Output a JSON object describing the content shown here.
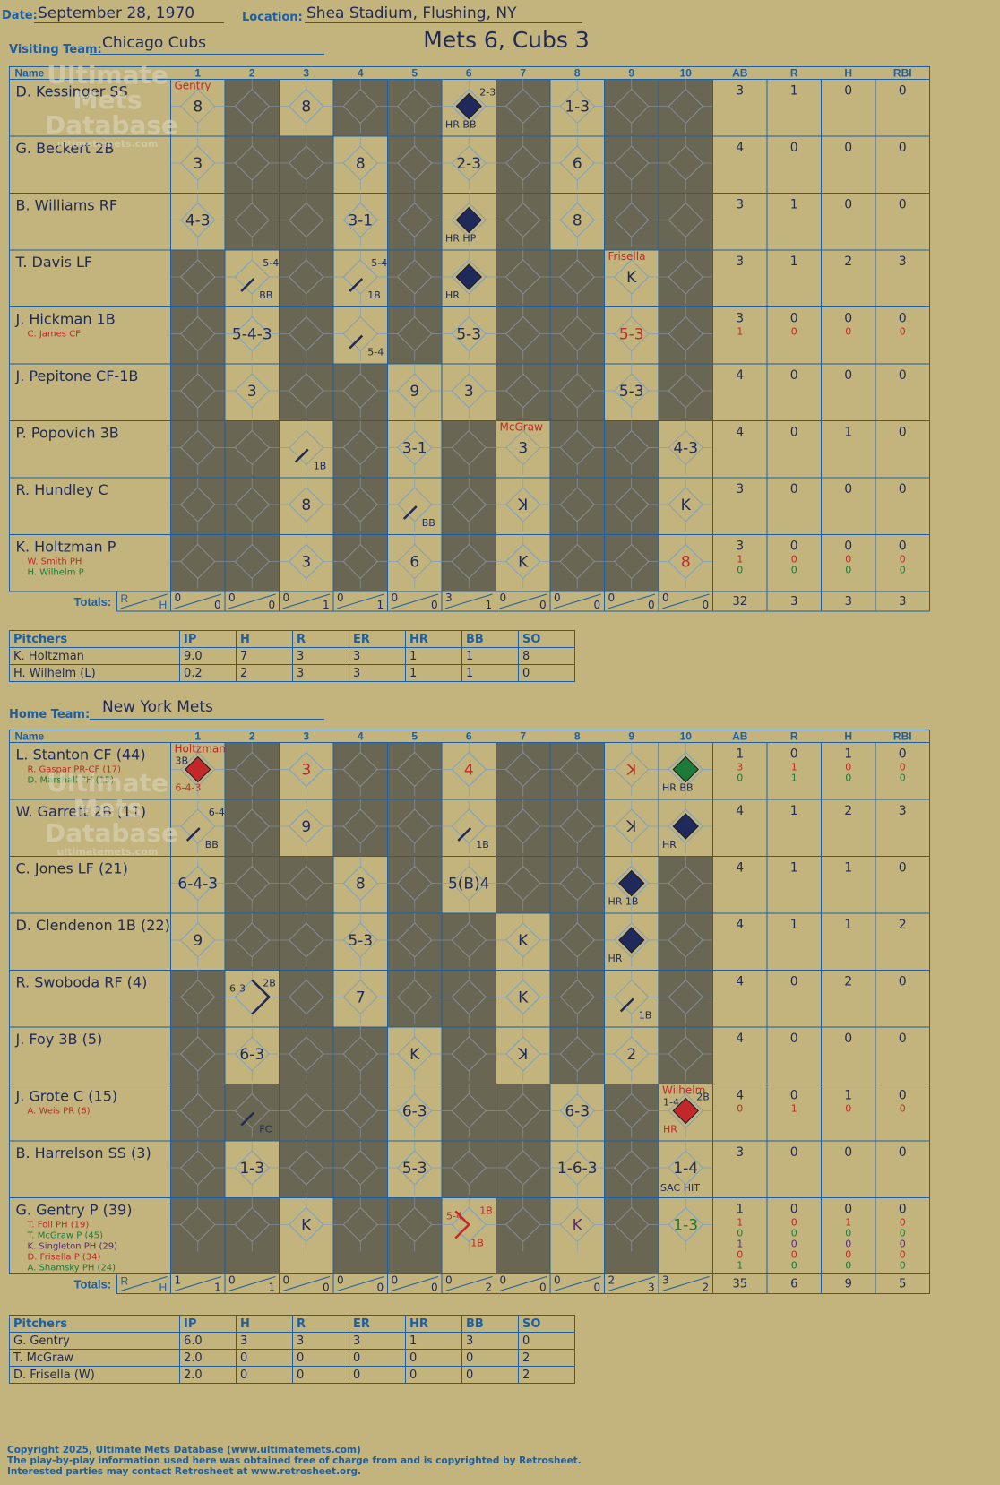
{
  "header": {
    "date_label": "Date:",
    "date": "September 28, 1970",
    "location_label": "Location:",
    "location": "Shea Stadium, Flushing, NY",
    "visiting_label": "Visiting Team:",
    "visiting_team": "Chicago Cubs",
    "home_label": "Home Team:",
    "home_team": "New York Mets",
    "matchup": "Mets 6, Cubs 3"
  },
  "watermark": {
    "line1": "Ultimate",
    "line2": "Mets",
    "line3": "Database",
    "url": "ultimatemets.com"
  },
  "colors": {
    "background": "#c2b47c",
    "grid": "#1d5fa5",
    "shade": "#6a6654",
    "ink": "#1f2a5a",
    "red": "#c22828",
    "green": "#1e7a3a",
    "purple": "#5a2a7a"
  },
  "columns": {
    "name": "Name",
    "innings": [
      "1",
      "2",
      "3",
      "4",
      "5",
      "6",
      "7",
      "8",
      "9",
      "10"
    ],
    "stats": [
      "AB",
      "R",
      "H",
      "RBI"
    ]
  },
  "totals_label": "Totals:",
  "totals_r": "R",
  "totals_h": "H",
  "pitch_headers": [
    "Pitchers",
    "IP",
    "H",
    "R",
    "ER",
    "HR",
    "BB",
    "SO"
  ],
  "visitors": {
    "rows": [
      {
        "name": "D. Kessinger SS",
        "subs": [],
        "stats": [
          [
            "3",
            "1",
            "0",
            "0"
          ]
        ],
        "cells": [
          {
            "c": "8",
            "pitch": "Gentry",
            "pc": "red"
          },
          null,
          {
            "c": "8"
          },
          null,
          null,
          {
            "c": "",
            "dia": "ink",
            "br": "HR  BB",
            "tr": "2-3"
          },
          null,
          {
            "c": "1-3"
          },
          null,
          null
        ]
      },
      {
        "name": "G. Beckert 2B",
        "subs": [],
        "stats": [
          [
            "4",
            "0",
            "0",
            "0"
          ]
        ],
        "cells": [
          {
            "c": "3"
          },
          null,
          null,
          {
            "c": "8"
          },
          null,
          {
            "c": "2-3"
          },
          null,
          {
            "c": "6"
          },
          null,
          null
        ]
      },
      {
        "name": "B. Williams RF",
        "subs": [],
        "stats": [
          [
            "3",
            "1",
            "0",
            "0"
          ]
        ],
        "cells": [
          {
            "c": "4-3"
          },
          null,
          null,
          {
            "c": "3-1"
          },
          null,
          {
            "c": "",
            "dia": "ink",
            "br": "HR  HP"
          },
          null,
          {
            "c": "8"
          },
          null,
          null
        ]
      },
      {
        "name": "T. Davis LF",
        "subs": [],
        "stats": [
          [
            "3",
            "1",
            "2",
            "3"
          ]
        ],
        "cells": [
          null,
          {
            "c": "",
            "tr": "5-4",
            "slash": true,
            "brr": "BB"
          },
          null,
          {
            "c": "",
            "tr": "5-4",
            "slash": true,
            "brr": "1B"
          },
          null,
          {
            "c": "",
            "dia": "ink",
            "br": "HR"
          },
          null,
          null,
          {
            "c": "K",
            "pitch": "Frisella",
            "pc": "red"
          },
          null
        ]
      },
      {
        "name": "J. Hickman 1B",
        "subs": [
          {
            "t": "C. James CF",
            "col": "red"
          }
        ],
        "stats": [
          [
            "3",
            "0",
            "0",
            "0"
          ],
          [
            "1",
            "0",
            "0",
            "0"
          ]
        ],
        "cells": [
          null,
          {
            "c": "5-4-3"
          },
          null,
          {
            "c": "",
            "slash": true,
            "brr": "5-4"
          },
          null,
          {
            "c": "5-3"
          },
          null,
          null,
          {
            "c": "5-3",
            "col": "red"
          },
          null
        ]
      },
      {
        "name": "J. Pepitone CF-1B",
        "subs": [],
        "stats": [
          [
            "4",
            "0",
            "0",
            "0"
          ]
        ],
        "cells": [
          null,
          {
            "c": "3"
          },
          null,
          null,
          {
            "c": "9"
          },
          {
            "c": "3"
          },
          null,
          null,
          {
            "c": "5-3"
          },
          null
        ]
      },
      {
        "name": "P. Popovich 3B",
        "subs": [],
        "stats": [
          [
            "4",
            "0",
            "1",
            "0"
          ]
        ],
        "cells": [
          null,
          null,
          {
            "c": "",
            "slash": true,
            "brr": "1B"
          },
          null,
          {
            "c": "3-1"
          },
          null,
          {
            "c": "3",
            "pitch": "McGraw",
            "pc": "red"
          },
          null,
          null,
          {
            "c": "4-3"
          }
        ]
      },
      {
        "name": "R. Hundley C",
        "subs": [],
        "stats": [
          [
            "3",
            "0",
            "0",
            "0"
          ]
        ],
        "cells": [
          null,
          null,
          {
            "c": "8"
          },
          null,
          {
            "c": "",
            "slash": true,
            "brr": "BB"
          },
          null,
          {
            "c": "ꓘ"
          },
          null,
          null,
          {
            "c": "K"
          }
        ]
      },
      {
        "name": "K. Holtzman P",
        "subs": [
          {
            "t": "W. Smith PH",
            "col": "red"
          },
          {
            "t": "H. Wilhelm P",
            "col": "green"
          }
        ],
        "stats": [
          [
            "3",
            "0",
            "0",
            "0"
          ],
          [
            "1",
            "0",
            "0",
            "0"
          ],
          [
            "0",
            "0",
            "0",
            "0"
          ]
        ],
        "cells": [
          null,
          null,
          {
            "c": "3"
          },
          null,
          {
            "c": "6"
          },
          null,
          {
            "c": "K"
          },
          null,
          null,
          {
            "c": "8",
            "col": "red"
          }
        ]
      }
    ],
    "shade": [
      [
        0,
        0,
        1,
        0,
        1,
        1,
        0,
        1,
        0,
        1,
        1
      ],
      [
        0,
        0,
        1,
        1,
        0,
        1,
        0,
        1,
        0,
        1,
        1
      ],
      [
        0,
        0,
        1,
        1,
        0,
        1,
        0,
        1,
        0,
        1,
        1
      ],
      [
        0,
        1,
        0,
        1,
        0,
        1,
        0,
        1,
        1,
        0,
        1
      ],
      [
        0,
        1,
        0,
        1,
        0,
        1,
        0,
        1,
        1,
        0,
        1
      ],
      [
        0,
        1,
        0,
        1,
        1,
        0,
        0,
        1,
        1,
        0,
        1
      ],
      [
        0,
        1,
        1,
        0,
        1,
        0,
        1,
        0,
        1,
        1,
        0
      ],
      [
        0,
        1,
        1,
        0,
        1,
        0,
        1,
        0,
        1,
        1,
        0
      ],
      [
        0,
        1,
        1,
        0,
        1,
        0,
        1,
        0,
        1,
        1,
        0
      ]
    ],
    "totals": [
      [
        "0",
        "0"
      ],
      [
        "0",
        "0"
      ],
      [
        "0",
        "1"
      ],
      [
        "0",
        "1"
      ],
      [
        "0",
        "0"
      ],
      [
        "3",
        "1"
      ],
      [
        "0",
        "0"
      ],
      [
        "0",
        "0"
      ],
      [
        "0",
        "0"
      ],
      [
        "0",
        "0"
      ]
    ],
    "total_stats": [
      "32",
      "3",
      "3",
      "3"
    ],
    "pitchers": [
      [
        "K. Holtzman",
        "9.0",
        "7",
        "3",
        "3",
        "1",
        "1",
        "8"
      ],
      [
        "H. Wilhelm (L)",
        "0.2",
        "2",
        "3",
        "3",
        "1",
        "1",
        "0"
      ]
    ]
  },
  "home": {
    "rows": [
      {
        "name": "L. Stanton CF (44)",
        "subs": [
          {
            "t": "R. Gaspar PR-CF (17)",
            "col": "red"
          },
          {
            "t": "D. Marshall PH (15)",
            "col": "green"
          }
        ],
        "stats": [
          [
            "1",
            "0",
            "1",
            "0"
          ],
          [
            "3",
            "1",
            "0",
            "0"
          ],
          [
            "0",
            "1",
            "0",
            "0"
          ]
        ],
        "cells": [
          {
            "c": "",
            "dia": "red",
            "tl": "3B",
            "bl": "6-4-3",
            "pitch": "Holtzman",
            "pc": "red"
          },
          null,
          {
            "c": "3",
            "col": "red"
          },
          null,
          null,
          {
            "c": "4",
            "col": "red"
          },
          null,
          null,
          {
            "c": "ꓘ",
            "col": "red"
          },
          {
            "c": "",
            "dia": "green",
            "br": "HR  BB"
          }
        ]
      },
      {
        "name": "W. Garrett 2B (11)",
        "subs": [],
        "stats": [
          [
            "4",
            "1",
            "2",
            "3"
          ]
        ],
        "cells": [
          {
            "c": "",
            "tr": "6-4",
            "slash": true,
            "brr": "BB"
          },
          null,
          {
            "c": "9"
          },
          null,
          null,
          {
            "c": "",
            "slash": true,
            "brr": "1B"
          },
          null,
          null,
          {
            "c": "ꓘ"
          },
          {
            "c": "",
            "dia": "ink",
            "br": "HR"
          }
        ]
      },
      {
        "name": "C. Jones LF (21)",
        "subs": [],
        "stats": [
          [
            "4",
            "1",
            "1",
            "0"
          ]
        ],
        "cells": [
          {
            "c": "6-4-3"
          },
          null,
          null,
          {
            "c": "8"
          },
          null,
          {
            "c": "5(B)4"
          },
          null,
          null,
          {
            "c": "",
            "dia": "ink",
            "br": "HR  1B"
          },
          null
        ]
      },
      {
        "name": "D. Clendenon 1B (22)",
        "subs": [],
        "stats": [
          [
            "4",
            "1",
            "1",
            "2"
          ]
        ],
        "cells": [
          {
            "c": "9"
          },
          null,
          null,
          {
            "c": "5-3"
          },
          null,
          null,
          {
            "c": "K"
          },
          null,
          {
            "c": "",
            "dia": "ink",
            "br": "HR"
          },
          null
        ]
      },
      {
        "name": "R. Swoboda RF (4)",
        "subs": [],
        "stats": [
          [
            "4",
            "0",
            "2",
            "0"
          ]
        ],
        "cells": [
          null,
          {
            "c": "",
            "tl": "6-3",
            "tr": "2B",
            "bigslash": true
          },
          null,
          {
            "c": "7"
          },
          null,
          null,
          {
            "c": "K"
          },
          null,
          {
            "c": "",
            "slash": true,
            "brr": "1B"
          },
          null
        ]
      },
      {
        "name": "J. Foy 3B (5)",
        "subs": [],
        "stats": [
          [
            "4",
            "0",
            "0",
            "0"
          ]
        ],
        "cells": [
          null,
          {
            "c": "6-3"
          },
          null,
          null,
          {
            "c": "K"
          },
          null,
          {
            "c": "ꓘ"
          },
          null,
          {
            "c": "2"
          },
          null
        ]
      },
      {
        "name": "J. Grote C (15)",
        "subs": [
          {
            "t": "A. Weis PR (6)",
            "col": "red"
          }
        ],
        "stats": [
          [
            "4",
            "0",
            "1",
            "0"
          ],
          [
            "0",
            "1",
            "0",
            "0"
          ]
        ],
        "cells": [
          null,
          {
            "c": "",
            "slash": true,
            "brr": "FC"
          },
          null,
          null,
          {
            "c": "6-3"
          },
          null,
          null,
          {
            "c": "6-3"
          },
          null,
          {
            "c": "",
            "dia": "red",
            "tl": "1-4",
            "tr": "2B",
            "bl": "HR",
            "pitch": "Wilhelm",
            "pc": "red"
          }
        ]
      },
      {
        "name": "B. Harrelson SS (3)",
        "subs": [],
        "stats": [
          [
            "3",
            "0",
            "0",
            "0"
          ]
        ],
        "cells": [
          null,
          {
            "c": "1-3"
          },
          null,
          null,
          {
            "c": "5-3"
          },
          null,
          null,
          {
            "c": "1-6-3"
          },
          null,
          {
            "c": "1-4",
            "brl": "SAC HIT"
          }
        ]
      },
      {
        "name": "G. Gentry P (39)",
        "subs": [
          {
            "t": "T. Foli PH (19)",
            "col": "red"
          },
          {
            "t": "T. McGraw P (45)",
            "col": "green"
          },
          {
            "t": "K. Singleton PH (29)",
            "col": "purple"
          },
          {
            "t": "D. Frisella P (34)",
            "col": "red"
          },
          {
            "t": "A. Shamsky PH (24)",
            "col": "green"
          }
        ],
        "stats": [
          [
            "1",
            "0",
            "0",
            "0"
          ],
          [
            "1",
            "0",
            "1",
            "0"
          ],
          [
            "0",
            "0",
            "0",
            "0"
          ],
          [
            "1",
            "0",
            "0",
            "0"
          ],
          [
            "0",
            "0",
            "0",
            "0"
          ],
          [
            "1",
            "0",
            "0",
            "0"
          ]
        ],
        "cells": [
          null,
          null,
          {
            "c": "K"
          },
          null,
          null,
          {
            "c": "",
            "tl": "5-4",
            "tr": "1B",
            "bl": "",
            "br": "1B",
            "redbent": true
          },
          null,
          {
            "c": "K",
            "col": "purple"
          },
          null,
          {
            "c": "1-3",
            "col": "green"
          }
        ]
      }
    ],
    "shade": [
      [
        0,
        0,
        1,
        0,
        1,
        1,
        0,
        1,
        1,
        0,
        0
      ],
      [
        0,
        0,
        1,
        0,
        1,
        1,
        0,
        1,
        1,
        0,
        0
      ],
      [
        0,
        0,
        1,
        1,
        0,
        1,
        0,
        1,
        1,
        0,
        1
      ],
      [
        0,
        0,
        1,
        1,
        0,
        1,
        1,
        0,
        1,
        0,
        1
      ],
      [
        0,
        1,
        0,
        1,
        0,
        1,
        1,
        0,
        1,
        0,
        1
      ],
      [
        0,
        1,
        0,
        1,
        1,
        0,
        1,
        0,
        1,
        0,
        1
      ],
      [
        0,
        1,
        1,
        1,
        1,
        0,
        1,
        1,
        0,
        1,
        0
      ],
      [
        0,
        1,
        0,
        1,
        1,
        0,
        1,
        1,
        0,
        1,
        0
      ],
      [
        0,
        1,
        1,
        0,
        1,
        1,
        0,
        1,
        0,
        1,
        0
      ]
    ],
    "totals": [
      [
        "1",
        "1"
      ],
      [
        "0",
        "1"
      ],
      [
        "0",
        "0"
      ],
      [
        "0",
        "0"
      ],
      [
        "0",
        "0"
      ],
      [
        "0",
        "2"
      ],
      [
        "0",
        "0"
      ],
      [
        "0",
        "0"
      ],
      [
        "2",
        "3"
      ],
      [
        "3",
        "2"
      ]
    ],
    "total_stats": [
      "35",
      "6",
      "9",
      "5"
    ],
    "pitchers": [
      [
        "G. Gentry",
        "6.0",
        "3",
        "3",
        "3",
        "1",
        "3",
        "0"
      ],
      [
        "T. McGraw",
        "2.0",
        "0",
        "0",
        "0",
        "0",
        "0",
        "2"
      ],
      [
        "D. Frisella (W)",
        "2.0",
        "0",
        "0",
        "0",
        "0",
        "0",
        "2"
      ]
    ]
  },
  "copyright": [
    "Copyright 2025, Ultimate Mets Database (www.ultimatemets.com)",
    "  The play-by-play information used here was obtained free of charge from and is copyrighted by Retrosheet.",
    "  Interested parties may contact Retrosheet at www.retrosheet.org."
  ]
}
